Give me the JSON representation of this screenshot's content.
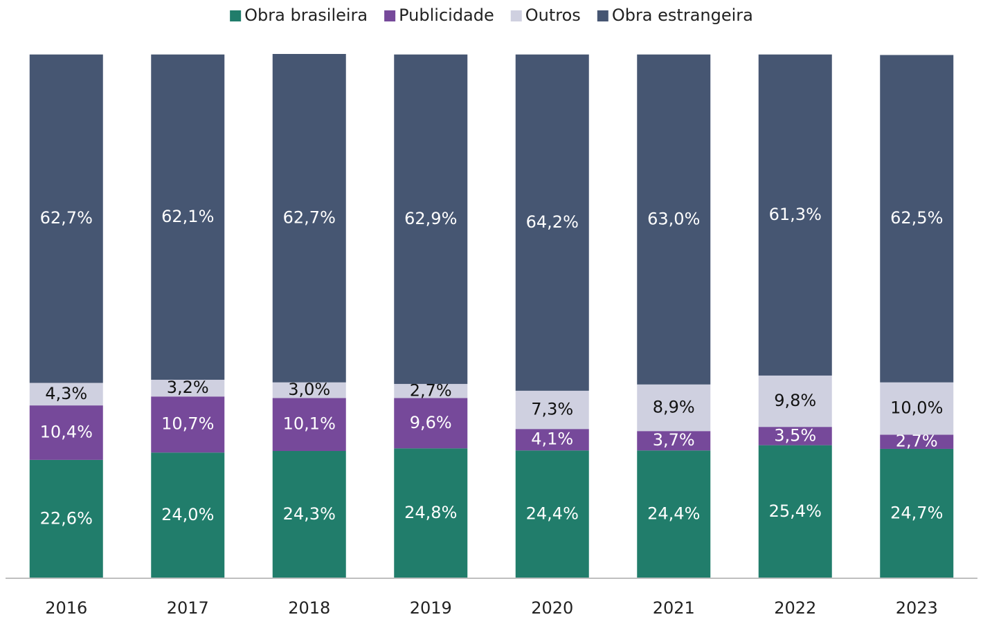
{
  "chart_data": {
    "type": "stacked_bar",
    "categories": [
      "2016",
      "2017",
      "2018",
      "2019",
      "2020",
      "2021",
      "2022",
      "2023"
    ],
    "series": [
      {
        "name": "Obra brasileira",
        "color": "#217d6b",
        "values": [
          22.6,
          24.0,
          24.3,
          24.8,
          24.4,
          24.4,
          25.4,
          24.7
        ],
        "value_labels": [
          "22,6%",
          "24,0%",
          "24,3%",
          "24,8%",
          "24,4%",
          "24,4%",
          "25,4%",
          "24,7%"
        ]
      },
      {
        "name": "Publicidade",
        "color": "#76499a",
        "values": [
          10.4,
          10.7,
          10.1,
          9.6,
          4.1,
          3.7,
          3.5,
          2.7
        ],
        "value_labels": [
          "10,4%",
          "10,7%",
          "10,1%",
          "9,6%",
          "4,1%",
          "3,7%",
          "3,5%",
          "2,7%"
        ]
      },
      {
        "name": "Outros",
        "color": "#cfd0e0",
        "values": [
          4.3,
          3.2,
          3.0,
          2.7,
          7.3,
          8.9,
          9.8,
          10.0
        ],
        "value_labels": [
          "4,3%",
          "3,2%",
          "3,0%",
          "2,7%",
          "7,3%",
          "8,9%",
          "9,8%",
          "10,0%"
        ]
      },
      {
        "name": "Obra estrangeira",
        "color": "#465672",
        "values": [
          62.7,
          62.1,
          62.7,
          62.9,
          64.2,
          63.0,
          61.3,
          62.5
        ],
        "value_labels": [
          "62,7%",
          "62,1%",
          "62,7%",
          "62,9%",
          "64,2%",
          "63,0%",
          "61,3%",
          "62,5%"
        ]
      }
    ],
    "legend": "top"
  }
}
